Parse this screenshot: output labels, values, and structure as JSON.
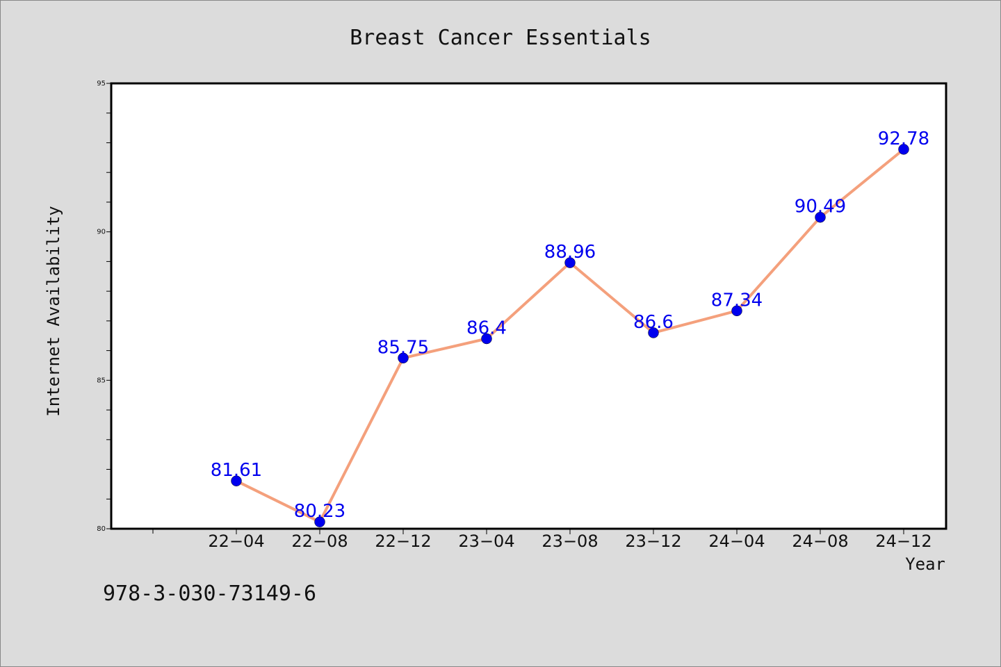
{
  "chart_data": {
    "type": "line",
    "title": "Breast Cancer Essentials",
    "xlabel": "Year",
    "ylabel": "Internet Availability",
    "categories": [
      "22-04",
      "22-08",
      "22-12",
      "23-04",
      "23-08",
      "23-12",
      "24-04",
      "24-08",
      "24-12"
    ],
    "tick_labels": [
      "22−04",
      "22−08",
      "22−12",
      "23−04",
      "23−08",
      "23−12",
      "24−04",
      "24−08",
      "24−12"
    ],
    "series": [
      {
        "values": [
          81.61,
          80.23,
          85.75,
          86.4,
          88.96,
          86.6,
          87.34,
          90.49,
          92.78
        ],
        "data_labels": [
          "81.61",
          "80.23",
          "85.75",
          "86.4",
          "88.96",
          "86.6",
          "87.34",
          "90.49",
          "92.78"
        ]
      }
    ],
    "ylim": [
      80,
      95
    ],
    "yticks": [
      80,
      85,
      90,
      95
    ],
    "grid": false,
    "legend": "none",
    "colors": {
      "line": "#f4a07c",
      "marker": "#0000ee",
      "data_label": "#0000ee",
      "plot_background": "#ffffff",
      "figure_background": "#dcdcdc"
    }
  },
  "footer": {
    "code": "978-3-030-73149-6"
  }
}
